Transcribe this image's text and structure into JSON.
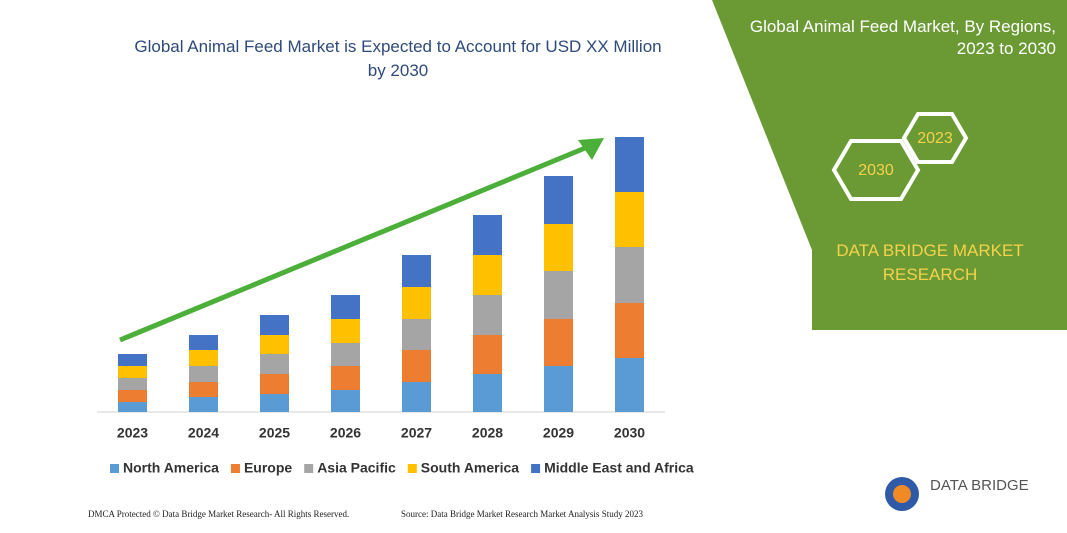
{
  "chart_data": {
    "type": "stacked_bar",
    "title": "Global Animal Feed Market is Expected to Account for USD XX Million by 2030",
    "categories": [
      "2023",
      "2024",
      "2025",
      "2026",
      "2027",
      "2028",
      "2029",
      "2030"
    ],
    "series": [
      {
        "name": "North America",
        "color": "#5b9bd5",
        "values": [
          10,
          15,
          18,
          22,
          30,
          38,
          46,
          54
        ]
      },
      {
        "name": "Europe",
        "color": "#ed7d31",
        "values": [
          12,
          15,
          20,
          24,
          32,
          39,
          47,
          55
        ]
      },
      {
        "name": "Asia Pacific",
        "color": "#a5a5a5",
        "values": [
          12,
          16,
          20,
          23,
          31,
          40,
          48,
          56
        ]
      },
      {
        "name": "South America",
        "color": "#ffc000",
        "values": [
          12,
          16,
          19,
          24,
          32,
          40,
          47,
          55
        ]
      },
      {
        "name": "Middle East and Africa",
        "color": "#4472c4",
        "values": [
          12,
          15,
          20,
          24,
          32,
          40,
          48,
          55
        ]
      }
    ],
    "ylim": [
      0,
      290
    ]
  },
  "panel": {
    "title": "Global Animal Feed Market, By Regions, 2023 to 2030",
    "hex_start": "2023",
    "hex_end": "2030",
    "brand": "DATA BRIDGE MARKET RESEARCH"
  },
  "logo": "DATA BRIDGE",
  "footer": {
    "left": "DMCA Protected © Data Bridge Market Research- All Rights Reserved.",
    "right": "Source: Data Bridge Market Research Market Analysis Study 2023"
  }
}
